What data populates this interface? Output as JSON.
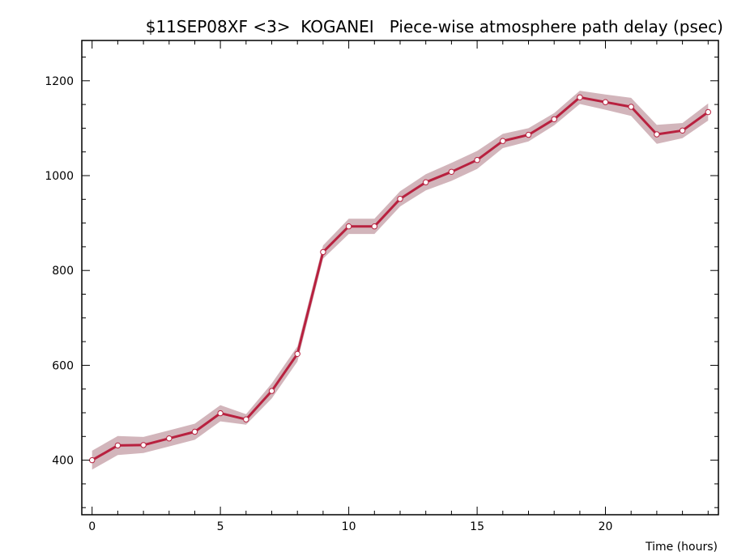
{
  "chart_data": {
    "type": "line",
    "title": "$11SEP08XF <3>  KOGANEI   Piece-wise atmosphere path delay (psec)",
    "xlabel": "Time (hours)",
    "ylabel": "",
    "xlim": [
      -0.4,
      24.4
    ],
    "ylim": [
      285,
      1285
    ],
    "xticks": [
      0,
      5,
      10,
      15,
      20
    ],
    "yticks": [
      400,
      600,
      800,
      1000,
      1200
    ],
    "grid": false,
    "series": [
      {
        "x": [
          0,
          1,
          2,
          3,
          4,
          5,
          6,
          7,
          8,
          9,
          10,
          11,
          12,
          13,
          14,
          15,
          16,
          17,
          18,
          19,
          20,
          21,
          22,
          23,
          24
        ],
        "values": [
          400,
          431,
          432,
          446,
          460,
          499,
          486,
          546,
          624,
          839,
          893,
          893,
          951,
          986,
          1008,
          1033,
          1073,
          1086,
          1119,
          1165,
          1155,
          1145,
          1087,
          1095,
          1134
        ],
        "error": [
          20,
          20,
          17,
          17,
          17,
          17,
          11,
          16,
          16,
          14,
          16,
          16,
          16,
          17,
          19,
          19,
          15,
          14,
          13,
          14,
          16,
          19,
          20,
          16,
          18
        ]
      }
    ],
    "colors": {
      "line": "#b8213f",
      "band": "#d2b5bb",
      "marker_fill": "#ffffff"
    }
  }
}
